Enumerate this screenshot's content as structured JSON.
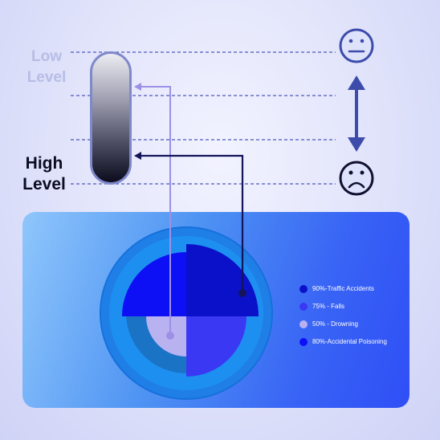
{
  "labels": {
    "low_level": "Low Level",
    "high_level": "High Level"
  },
  "icons": {
    "top_face": "neutral-face-icon",
    "bottom_face": "sad-face-icon",
    "arrow": "double-headed-vertical-arrow-icon"
  },
  "legend": [
    {
      "label": "90%-Traffic Accidents",
      "percent": 90,
      "color": "#0b11c9"
    },
    {
      "label": "75% - Falls",
      "percent": 75,
      "color": "#3a38f2"
    },
    {
      "label": "50% - Drowning",
      "percent": 50,
      "color": "#b8b2f0"
    },
    {
      "label": "80%-Accidental Poisoning",
      "percent": 80,
      "color": "#0d0ff5"
    }
  ],
  "colors": {
    "dark_line": "#14145a",
    "light_line": "#9c90e6",
    "dotted_line": "#5057b8",
    "arrow": "#3d4cab"
  }
}
